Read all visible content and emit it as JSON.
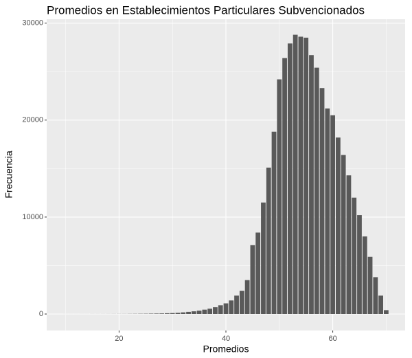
{
  "chart_data": {
    "type": "histogram",
    "title": "Promedios en Establecimientos Particulares Subvencionados",
    "x_label": "Promedios",
    "y_label": "Frecuencia",
    "bins": [
      9.5,
      10.5,
      11.5,
      12.5,
      13.5,
      14.5,
      15.5,
      16.5,
      17.5,
      18.5,
      19.5,
      20.5,
      21.5,
      22.5,
      23.5,
      24.5,
      25.5,
      26.5,
      27.5,
      28.5,
      29.5,
      30.5,
      31.5,
      32.5,
      33.5,
      34.5,
      35.5,
      36.5,
      37.5,
      38.5,
      39.5,
      40.5,
      41.5,
      42.5,
      43.5,
      44.5,
      45.5,
      46.5,
      47.5,
      48.5,
      49.5,
      50.5,
      51.5,
      52.5,
      53.5,
      54.5,
      55.5,
      56.5,
      57.5,
      58.5,
      59.5,
      60.5,
      61.5,
      62.5,
      63.5,
      64.5,
      65.5,
      66.5,
      67.5,
      68.5,
      69.5,
      70.5
    ],
    "counts": [
      2,
      2,
      2,
      3,
      3,
      4,
      4,
      5,
      6,
      8,
      10,
      10,
      15,
      20,
      25,
      30,
      40,
      50,
      60,
      80,
      100,
      130,
      170,
      220,
      280,
      350,
      450,
      550,
      700,
      900,
      1100,
      1400,
      1900,
      2400,
      3500,
      7100,
      8400,
      11500,
      15100,
      18800,
      24200,
      26400,
      27900,
      28800,
      28600,
      28500,
      26700,
      25400,
      23300,
      21200,
      20500,
      18200,
      16400,
      14300,
      12000,
      10200,
      8000,
      5900,
      3800,
      1900,
      400
    ],
    "color": "#595959",
    "xlim": [
      6.45,
      73.55
    ],
    "xticks": [
      20,
      40,
      60
    ],
    "ylim": [
      -1700,
      30400
    ],
    "yticks": [
      0,
      10000,
      20000,
      30000
    ],
    "grid": true
  }
}
